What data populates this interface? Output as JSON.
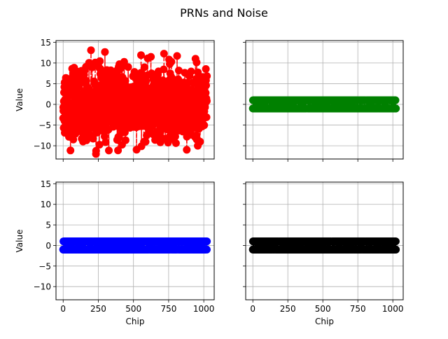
{
  "figure": {
    "title": "PRNs and Noise"
  },
  "chart_data": [
    {
      "type": "scatter",
      "position": "top-left",
      "line_style": "dashed stem",
      "color": "#ff0000",
      "marker_color": "#ff0000",
      "xlabel": "",
      "ylabel": "Value",
      "xlim": [
        -51,
        1074
      ],
      "ylim": [
        -13.2,
        15.4
      ],
      "xticks": [
        0,
        250,
        500,
        750,
        1000
      ],
      "yticks": [
        -10,
        -5,
        0,
        5,
        10,
        15
      ],
      "show_xticklabels": false,
      "show_yticklabels": true,
      "grid": true,
      "n_points": 1023,
      "description_value_range": [
        -12.0,
        14.2
      ],
      "x_range": [
        0,
        1022
      ]
    },
    {
      "type": "scatter",
      "position": "top-right",
      "color": "#008000",
      "xlabel": "",
      "ylabel": "",
      "xlim": [
        -51,
        1074
      ],
      "ylim": [
        -13.2,
        15.4
      ],
      "xticks": [
        0,
        250,
        500,
        750,
        1000
      ],
      "yticks": [
        -10,
        -5,
        0,
        5,
        10,
        15
      ],
      "show_xticklabels": false,
      "show_yticklabels": false,
      "grid": true,
      "values": [
        -1,
        1
      ],
      "x_range": [
        0,
        1022
      ]
    },
    {
      "type": "scatter",
      "position": "bottom-left",
      "color": "#0000ff",
      "xlabel": "Chip",
      "ylabel": "Value",
      "xlim": [
        -51,
        1074
      ],
      "ylim": [
        -13.2,
        15.4
      ],
      "xticks": [
        0,
        250,
        500,
        750,
        1000
      ],
      "yticks": [
        -10,
        -5,
        0,
        5,
        10,
        15
      ],
      "show_xticklabels": true,
      "show_yticklabels": true,
      "grid": true,
      "values": [
        -1,
        1
      ],
      "x_range": [
        0,
        1022
      ]
    },
    {
      "type": "scatter",
      "position": "bottom-right",
      "color": "#000000",
      "xlabel": "Chip",
      "ylabel": "",
      "xlim": [
        -51,
        1074
      ],
      "ylim": [
        -13.2,
        15.4
      ],
      "xticks": [
        0,
        250,
        500,
        750,
        1000
      ],
      "yticks": [
        -10,
        -5,
        0,
        5,
        10,
        15
      ],
      "show_xticklabels": true,
      "show_yticklabels": false,
      "grid": true,
      "values": [
        -1,
        1
      ],
      "x_range": [
        0,
        1022
      ]
    }
  ]
}
